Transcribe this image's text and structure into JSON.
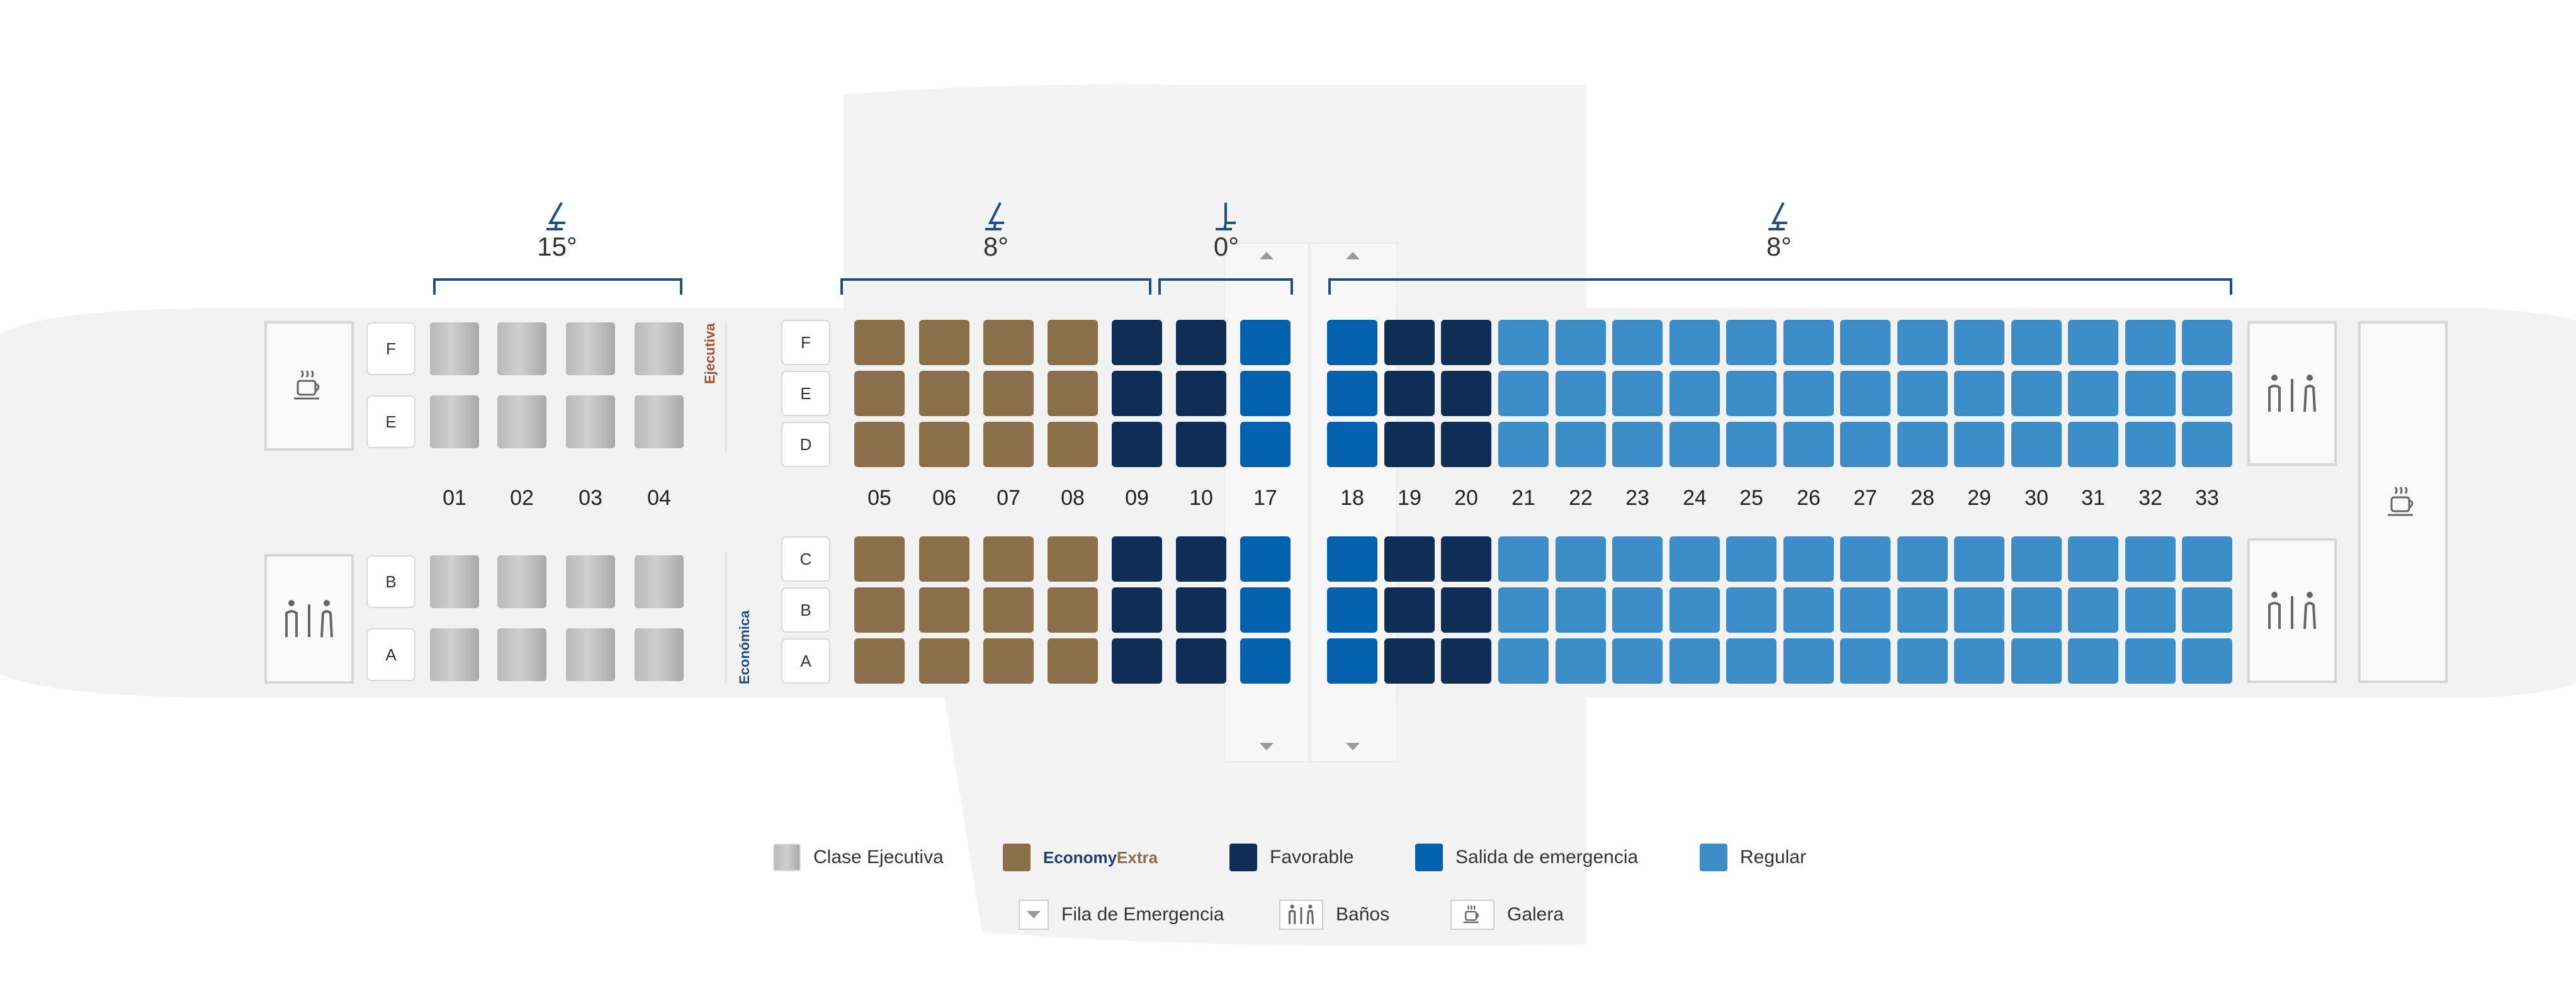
{
  "columns": {
    "exec": [
      "01",
      "02",
      "03",
      "04"
    ],
    "economy_extra": [
      "05",
      "06",
      "07",
      "08"
    ],
    "favorable_front": [
      "09",
      "10"
    ],
    "emergency_front": [
      "17"
    ],
    "emergency_rear": [
      "18"
    ],
    "favorable_rear": [
      "19",
      "20"
    ],
    "regular": [
      "21",
      "22",
      "23",
      "24",
      "25",
      "26",
      "27",
      "28",
      "29",
      "30",
      "31",
      "32",
      "33"
    ]
  },
  "seat_letters": {
    "exec_top": [
      "F",
      "E"
    ],
    "exec_bottom": [
      "B",
      "A"
    ],
    "econ_top": [
      "F",
      "E",
      "D"
    ],
    "econ_bottom": [
      "C",
      "B",
      "A"
    ]
  },
  "recline": {
    "exec": "15°",
    "economy_extra": "8°",
    "emergency": "0°",
    "regular": "8°"
  },
  "cabin_labels": {
    "executive": "Ejecutiva",
    "economy": "Económica"
  },
  "legend": {
    "clase_ejecutiva": "Clase Ejecutiva",
    "economy_extra_part1": "Economy",
    "economy_extra_part2": "Extra",
    "favorable": "Favorable",
    "salida_emergencia": "Salida de emergencia",
    "regular": "Regular",
    "fila_emergencia": "Fila de Emergencia",
    "banos": "Baños",
    "galera": "Galera"
  },
  "colors": {
    "economy_extra": "#8b6f4a",
    "favorable": "#0f2e57",
    "emergency": "#0461ad",
    "regular": "#3c8dc7",
    "bracket": "#1d4f86",
    "cabin_exec_label": "#a0522d",
    "cabin_econ_label": "#1d4f86"
  }
}
